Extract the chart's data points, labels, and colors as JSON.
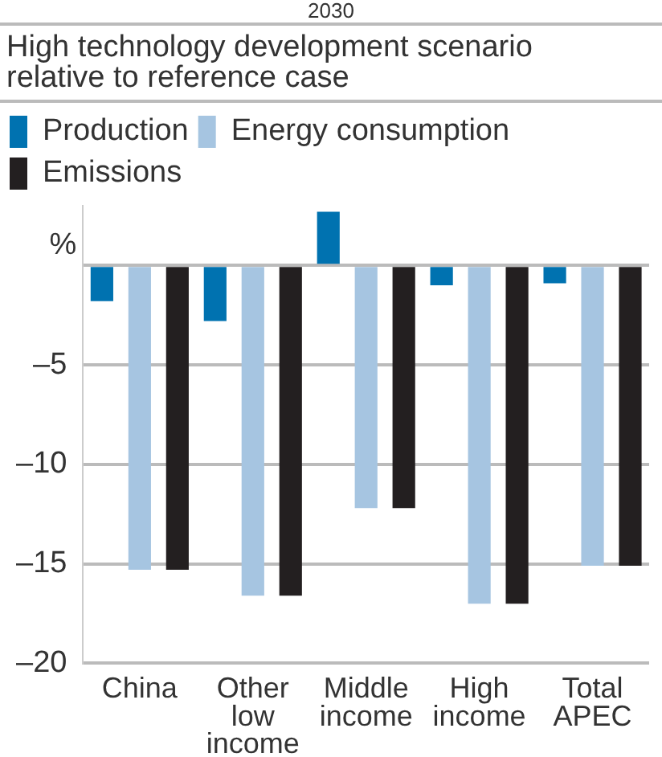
{
  "chart_data": {
    "type": "bar",
    "title": "2030",
    "subtitle": "High technology development scenario relative to reference case",
    "ylabel": "%",
    "categories": [
      "China",
      "Other low income",
      "Middle income",
      "High income",
      "Total APEC"
    ],
    "series": [
      {
        "name": "Production",
        "color": "#0072b0",
        "values": [
          -1.8,
          -2.8,
          2.7,
          -1.0,
          -0.9
        ]
      },
      {
        "name": "Energy consumption",
        "color": "#a6c5e1",
        "values": [
          -15.3,
          -16.6,
          -12.2,
          -17.0,
          -15.1
        ]
      },
      {
        "name": "Emissions",
        "color": "#231f20",
        "values": [
          -15.3,
          -16.6,
          -12.2,
          -17.0,
          -15.1
        ]
      }
    ],
    "ylim": [
      -20,
      3
    ],
    "yticks": [
      {
        "value": -20,
        "label": "–20"
      },
      {
        "value": -15,
        "label": "–15"
      },
      {
        "value": -10,
        "label": "–10"
      },
      {
        "value": -5,
        "label": "–5"
      },
      {
        "value": 0,
        "label": null
      }
    ],
    "grid": "y",
    "legend": "top"
  }
}
